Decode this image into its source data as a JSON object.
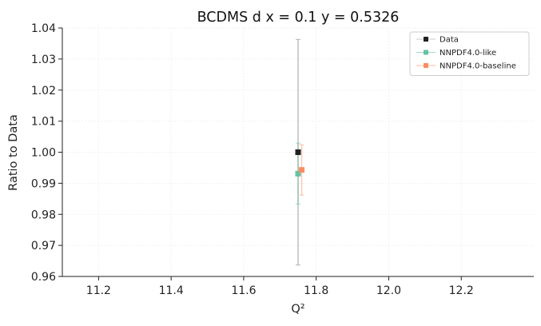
{
  "chart_data": {
    "type": "scatter",
    "title": "BCDMS d x = 0.1 y = 0.5326",
    "xlabel": "Q²",
    "ylabel": "Ratio to Data",
    "xlim": [
      11.1,
      12.4
    ],
    "ylim": [
      0.96,
      1.04
    ],
    "x_ticks": [
      "11.2",
      "11.4",
      "11.6",
      "11.8",
      "12.0",
      "12.2"
    ],
    "y_ticks": [
      "0.96",
      "0.97",
      "0.98",
      "0.99",
      "1.00",
      "1.01",
      "1.02",
      "1.03",
      "1.04"
    ],
    "grid": true,
    "legend_position": "top-right",
    "series": [
      {
        "name": "Data",
        "color": "#222222",
        "points": [
          {
            "x": 11.75,
            "y": 1.0,
            "err": 0.0363
          }
        ]
      },
      {
        "name": "NNPDF4.0-like",
        "color": "#66c2a5",
        "points": [
          {
            "x": 11.75,
            "y": 0.9931,
            "err": 0.0098
          }
        ]
      },
      {
        "name": "NNPDF4.0-baseline",
        "color": "#fc8d62",
        "points": [
          {
            "x": 11.76,
            "y": 0.9943,
            "err": 0.0081
          }
        ]
      }
    ]
  }
}
